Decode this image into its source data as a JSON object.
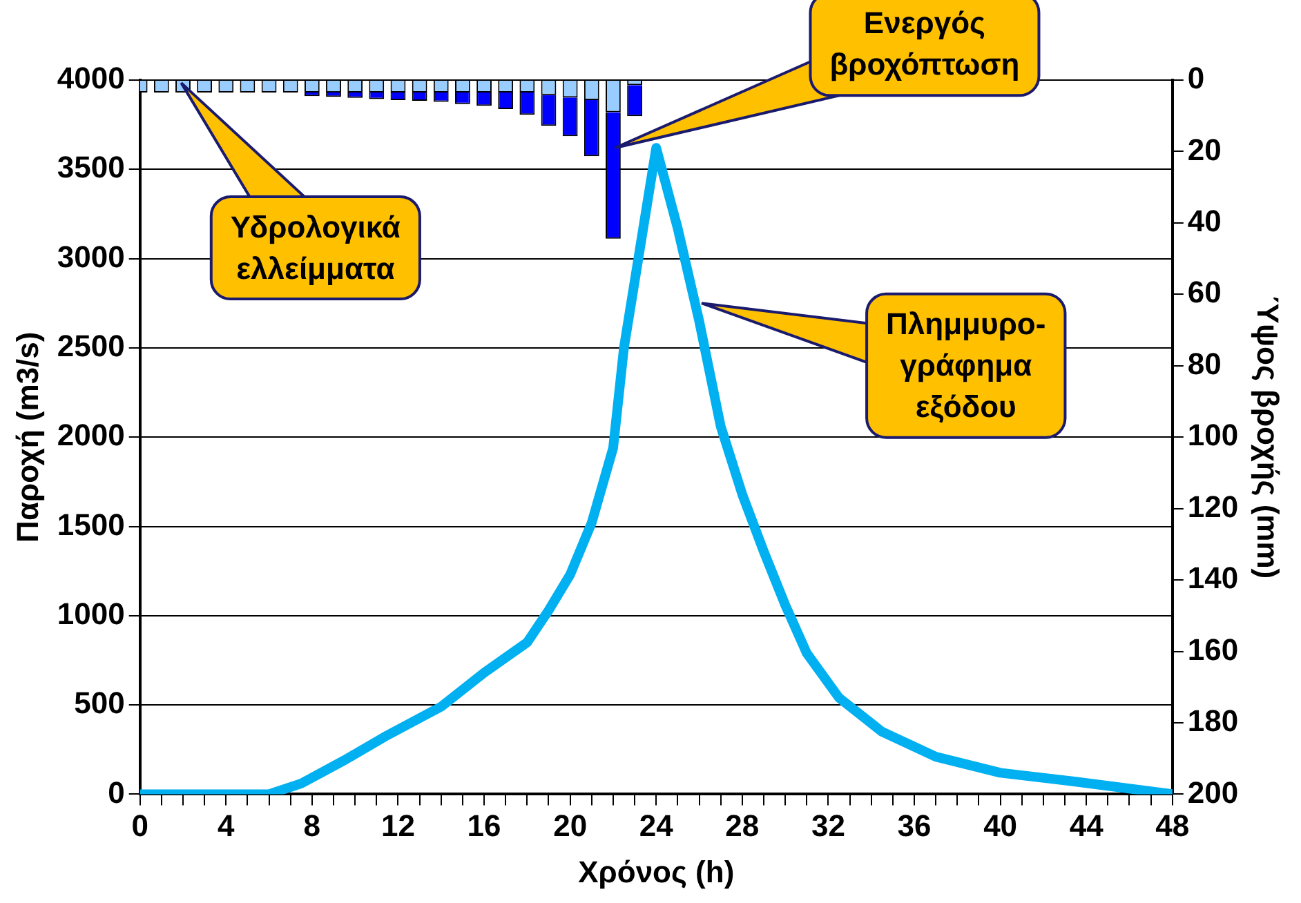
{
  "chart_data": {
    "type": "line",
    "xlabel": "Χρόνος (h)",
    "ylabel": "Παροχή (m3/s)",
    "y2label": "Ύψος βροχής (mm)",
    "xlim": [
      0,
      48
    ],
    "xticks": [
      0,
      {
        "value": 1,
        "label": null
      },
      {
        "value": 2,
        "label": null
      },
      {
        "value": 3,
        "label": null
      },
      4,
      {
        "value": 5,
        "label": null
      },
      {
        "value": 6,
        "label": null
      },
      {
        "value": 7,
        "label": null
      },
      8,
      {
        "value": 9,
        "label": null
      },
      {
        "value": 10,
        "label": null
      },
      {
        "value": 11,
        "label": null
      },
      12,
      {
        "value": 13,
        "label": null
      },
      {
        "value": 14,
        "label": null
      },
      {
        "value": 15,
        "label": null
      },
      16,
      {
        "value": 17,
        "label": null
      },
      {
        "value": 18,
        "label": null
      },
      {
        "value": 19,
        "label": null
      },
      20,
      {
        "value": 21,
        "label": null
      },
      {
        "value": 22,
        "label": null
      },
      {
        "value": 23,
        "label": null
      },
      24,
      {
        "value": 25,
        "label": null
      },
      {
        "value": 26,
        "label": null
      },
      {
        "value": 27,
        "label": null
      },
      28,
      {
        "value": 29,
        "label": null
      },
      {
        "value": 30,
        "label": null
      },
      {
        "value": 31,
        "label": null
      },
      32,
      {
        "value": 33,
        "label": null
      },
      {
        "value": 34,
        "label": null
      },
      {
        "value": 35,
        "label": null
      },
      36,
      {
        "value": 37,
        "label": null
      },
      {
        "value": 38,
        "label": null
      },
      {
        "value": 39,
        "label": null
      },
      40,
      {
        "value": 41,
        "label": null
      },
      {
        "value": 42,
        "label": null
      },
      {
        "value": 43,
        "label": null
      },
      44,
      {
        "value": 45,
        "label": null
      },
      {
        "value": 46,
        "label": null
      },
      {
        "value": 47,
        "label": null
      },
      48
    ],
    "ylim": [
      0,
      4000
    ],
    "yticks": [
      0,
      500,
      1000,
      1500,
      2000,
      2500,
      3000,
      3500,
      4000
    ],
    "y2lim": [
      200,
      0
    ],
    "y2ticks": [
      0,
      20,
      40,
      60,
      80,
      100,
      120,
      140,
      160,
      180,
      200
    ],
    "grid": "y",
    "legend": false,
    "stacked": true,
    "series": [
      {
        "type": "bar",
        "axis": "y2",
        "color": "#99ccff",
        "x": [
          0,
          1,
          2,
          3,
          4,
          5,
          6,
          7,
          8,
          9,
          10,
          11,
          12,
          13,
          14,
          15,
          16,
          17,
          18,
          19,
          20,
          21,
          22,
          23
        ],
        "values": [
          3.5,
          3.5,
          3.5,
          3.5,
          3.5,
          3.5,
          3.5,
          3.5,
          3.5,
          3.5,
          3.5,
          3.5,
          3.5,
          3.5,
          3.5,
          3.5,
          3.5,
          3.5,
          3.5,
          4.2,
          4.9,
          5.6,
          9,
          1.4
        ]
      },
      {
        "type": "bar",
        "axis": "y2",
        "color": "#0000ff",
        "x": [
          0,
          1,
          2,
          3,
          4,
          5,
          6,
          7,
          8,
          9,
          10,
          11,
          12,
          13,
          14,
          15,
          16,
          17,
          18,
          19,
          20,
          21,
          22,
          23
        ],
        "values": [
          0,
          0,
          0,
          0,
          0,
          0,
          0,
          0,
          1,
          1.2,
          1.5,
          1.8,
          2.1,
          2.3,
          2.6,
          3.2,
          3.7,
          4.6,
          6.2,
          8.6,
          10.8,
          15.7,
          35.4,
          8.7
        ]
      },
      {
        "axis": "y",
        "color": "#00b0f0",
        "marker": "none",
        "line_style": "solid",
        "x": [
          0,
          6,
          7.5,
          9.5,
          11.5,
          14,
          16,
          18,
          19,
          20,
          21,
          22,
          22.5,
          24,
          25,
          26,
          27,
          28,
          29,
          30,
          31,
          32.5,
          34.5,
          37,
          40,
          43.5,
          48
        ],
        "values": [
          0,
          0,
          60,
          190,
          330,
          490,
          680,
          850,
          1030,
          1230,
          1520,
          1940,
          2500,
          3620,
          3170,
          2650,
          2060,
          1680,
          1360,
          1060,
          790,
          540,
          350,
          210,
          120,
          70,
          0
        ]
      }
    ],
    "annotations": [
      "Υδρολογικά\nελλείμματα",
      "Ενεργός\nβροχόπτωση",
      "Πλημμυρο-\nγράφημα\nεξόδου"
    ]
  }
}
